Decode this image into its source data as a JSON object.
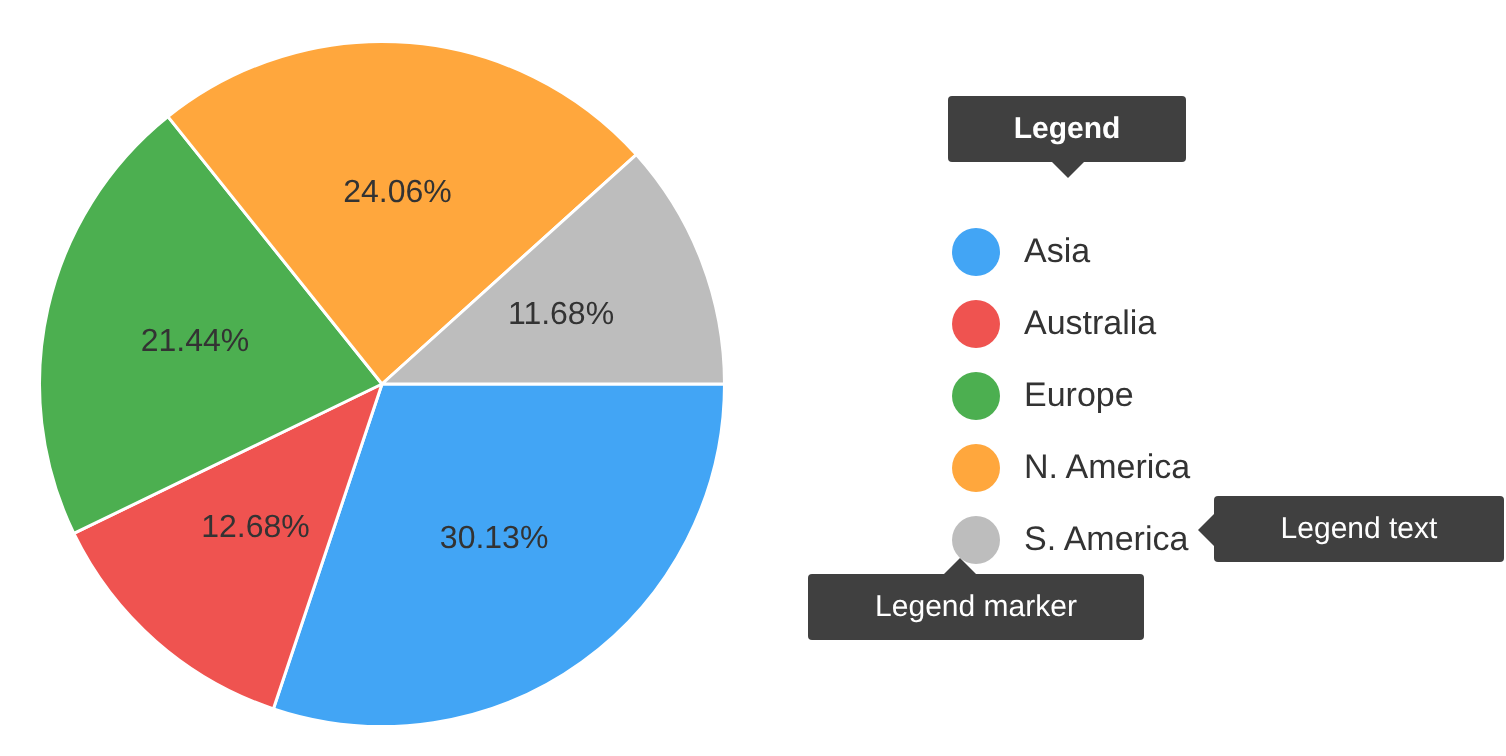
{
  "chart_data": {
    "type": "pie",
    "categories": [
      "Asia",
      "Australia",
      "Europe",
      "N. America",
      "S. America"
    ],
    "values": [
      30.13,
      12.68,
      21.44,
      24.06,
      11.68
    ],
    "colors": [
      "#42a5f5",
      "#ef5350",
      "#4caf50",
      "#ffa73d",
      "#bdbdbd"
    ],
    "value_labels": [
      "30.13%",
      "12.68%",
      "21.44%",
      "24.06%",
      "11.68%"
    ],
    "legend": "right",
    "annotations": [
      "Legend",
      "Legend text",
      "Legend marker"
    ]
  }
}
